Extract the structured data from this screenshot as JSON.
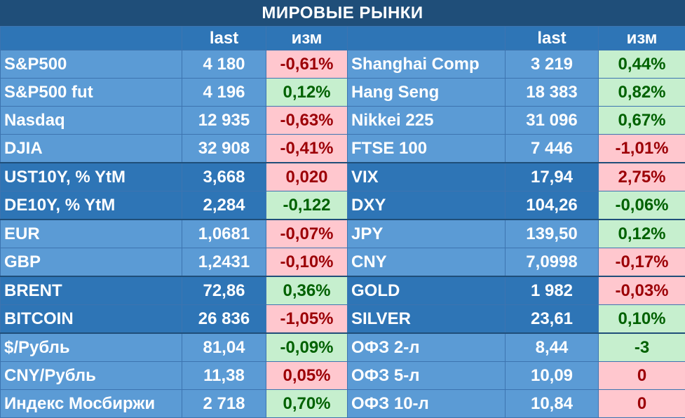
{
  "title": "МИРОВЫЕ РЫНКИ",
  "headers": {
    "left_last": "last",
    "left_chg": "изм",
    "right_last": "last",
    "right_chg": "изм"
  },
  "colors": {
    "title_bg": "#1f4e79",
    "header_bg": "#2e75b6",
    "light_row": "#5b9bd5",
    "dark_row": "#2e75b6",
    "pos_bg": "#c6efce",
    "pos_text": "#006100",
    "neg_bg": "#ffc7ce",
    "neg_text": "#9c0006"
  },
  "rows": [
    {
      "group": "light",
      "l": {
        "name": "S&P500",
        "last": "4 180",
        "chg": "-0,61%",
        "dir": "neg"
      },
      "r": {
        "name": "Shanghai Comp",
        "last": "3 219",
        "chg": "0,44%",
        "dir": "pos"
      }
    },
    {
      "group": "light",
      "l": {
        "name": "S&P500 fut",
        "last": "4 196",
        "chg": "0,12%",
        "dir": "pos"
      },
      "r": {
        "name": "Hang Seng",
        "last": "18 383",
        "chg": "0,82%",
        "dir": "pos"
      }
    },
    {
      "group": "light",
      "l": {
        "name": "Nasdaq",
        "last": "12 935",
        "chg": "-0,63%",
        "dir": "neg"
      },
      "r": {
        "name": "Nikkei 225",
        "last": "31 096",
        "chg": "0,67%",
        "dir": "pos"
      }
    },
    {
      "group": "light",
      "l": {
        "name": "DJIA",
        "last": "32 908",
        "chg": "-0,41%",
        "dir": "neg"
      },
      "r": {
        "name": "FTSE 100",
        "last": "7 446",
        "chg": "-1,01%",
        "dir": "neg"
      }
    },
    {
      "group": "dark",
      "l": {
        "name": "UST10Y, % YtM",
        "last": "3,668",
        "chg": "0,020",
        "dir": "neg"
      },
      "r": {
        "name": "VIX",
        "last": "17,94",
        "chg": "2,75%",
        "dir": "neg"
      }
    },
    {
      "group": "dark",
      "l": {
        "name": "DE10Y, % YtM",
        "last": "2,284",
        "chg": "-0,122",
        "dir": "pos"
      },
      "r": {
        "name": "DXY",
        "last": "104,26",
        "chg": "-0,06%",
        "dir": "pos"
      }
    },
    {
      "group": "light",
      "l": {
        "name": "EUR",
        "last": "1,0681",
        "chg": "-0,07%",
        "dir": "neg"
      },
      "r": {
        "name": "JPY",
        "last": "139,50",
        "chg": "0,12%",
        "dir": "pos"
      }
    },
    {
      "group": "light",
      "l": {
        "name": "GBP",
        "last": "1,2431",
        "chg": "-0,10%",
        "dir": "neg"
      },
      "r": {
        "name": "CNY",
        "last": "7,0998",
        "chg": "-0,17%",
        "dir": "neg"
      }
    },
    {
      "group": "dark",
      "l": {
        "name": "BRENT",
        "last": "72,86",
        "chg": "0,36%",
        "dir": "pos"
      },
      "r": {
        "name": "GOLD",
        "last": "1 982",
        "chg": "-0,03%",
        "dir": "neg"
      }
    },
    {
      "group": "dark",
      "l": {
        "name": "BITCOIN",
        "last": "26 836",
        "chg": "-1,05%",
        "dir": "neg"
      },
      "r": {
        "name": "SILVER",
        "last": "23,61",
        "chg": "0,10%",
        "dir": "pos"
      }
    },
    {
      "group": "light",
      "l": {
        "name": "$/Рубль",
        "last": "81,04",
        "chg": "-0,09%",
        "dir": "pos"
      },
      "r": {
        "name": "ОФЗ 2-л",
        "last": "8,44",
        "chg": "-3",
        "dir": "pos"
      }
    },
    {
      "group": "light",
      "l": {
        "name": "CNY/Рубль",
        "last": "11,38",
        "chg": "0,05%",
        "dir": "neg"
      },
      "r": {
        "name": "ОФЗ 5-л",
        "last": "10,09",
        "chg": "0",
        "dir": "neg"
      }
    },
    {
      "group": "light",
      "l": {
        "name": "Индекс Мосбиржи",
        "last": "2 718",
        "chg": "0,70%",
        "dir": "pos"
      },
      "r": {
        "name": "ОФЗ 10-л",
        "last": "10,84",
        "chg": "0",
        "dir": "neg"
      }
    }
  ]
}
